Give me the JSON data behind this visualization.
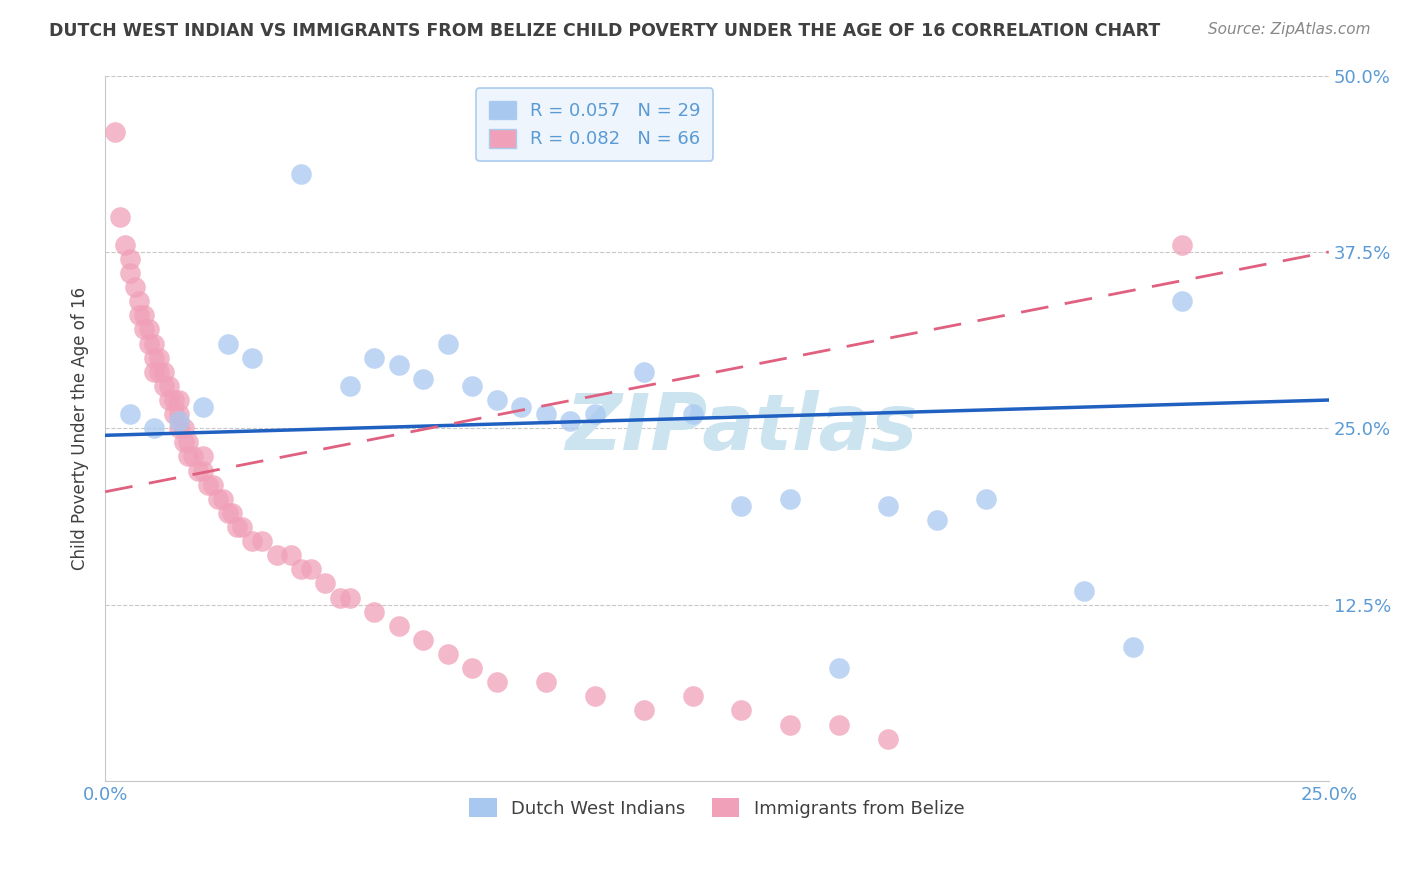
{
  "title": "DUTCH WEST INDIAN VS IMMIGRANTS FROM BELIZE CHILD POVERTY UNDER THE AGE OF 16 CORRELATION CHART",
  "source": "Source: ZipAtlas.com",
  "ylabel": "Child Poverty Under the Age of 16",
  "xlim": [
    0.0,
    0.25
  ],
  "ylim": [
    0.0,
    0.5
  ],
  "xticks": [
    0.0,
    0.025,
    0.05,
    0.075,
    0.1,
    0.125,
    0.15,
    0.175,
    0.2,
    0.225,
    0.25
  ],
  "yticks": [
    0.0,
    0.125,
    0.25,
    0.375,
    0.5
  ],
  "xtick_labels_show": [
    "0.0%",
    "25.0%"
  ],
  "ytick_labels": [
    "",
    "12.5%",
    "25.0%",
    "37.5%",
    "50.0%"
  ],
  "series1_name": "Dutch West Indians",
  "series1_color": "#a8c8f0",
  "series1_line_color": "#2060c0",
  "series1_R": 0.057,
  "series1_N": 29,
  "series1_x": [
    0.005,
    0.01,
    0.015,
    0.02,
    0.025,
    0.03,
    0.04,
    0.05,
    0.055,
    0.06,
    0.065,
    0.07,
    0.075,
    0.08,
    0.085,
    0.09,
    0.095,
    0.1,
    0.11,
    0.12,
    0.13,
    0.14,
    0.15,
    0.16,
    0.17,
    0.18,
    0.2,
    0.21,
    0.22
  ],
  "series1_y": [
    0.26,
    0.25,
    0.255,
    0.265,
    0.31,
    0.3,
    0.43,
    0.28,
    0.3,
    0.295,
    0.285,
    0.31,
    0.28,
    0.27,
    0.265,
    0.26,
    0.255,
    0.26,
    0.29,
    0.26,
    0.195,
    0.2,
    0.08,
    0.195,
    0.185,
    0.2,
    0.135,
    0.095,
    0.34
  ],
  "series2_name": "Immigrants from Belize",
  "series2_color": "#f0a0b8",
  "series2_line_color": "#e06080",
  "series2_R": 0.082,
  "series2_N": 66,
  "series2_x": [
    0.002,
    0.003,
    0.004,
    0.005,
    0.005,
    0.006,
    0.007,
    0.007,
    0.008,
    0.008,
    0.009,
    0.009,
    0.01,
    0.01,
    0.01,
    0.011,
    0.011,
    0.012,
    0.012,
    0.013,
    0.013,
    0.014,
    0.014,
    0.015,
    0.015,
    0.015,
    0.016,
    0.016,
    0.017,
    0.017,
    0.018,
    0.019,
    0.02,
    0.02,
    0.021,
    0.022,
    0.023,
    0.024,
    0.025,
    0.026,
    0.027,
    0.028,
    0.03,
    0.032,
    0.035,
    0.038,
    0.04,
    0.042,
    0.045,
    0.048,
    0.05,
    0.055,
    0.06,
    0.065,
    0.07,
    0.075,
    0.08,
    0.09,
    0.1,
    0.11,
    0.12,
    0.13,
    0.14,
    0.15,
    0.16,
    0.22
  ],
  "series2_y": [
    0.46,
    0.4,
    0.38,
    0.37,
    0.36,
    0.35,
    0.33,
    0.34,
    0.32,
    0.33,
    0.31,
    0.32,
    0.3,
    0.31,
    0.29,
    0.29,
    0.3,
    0.28,
    0.29,
    0.27,
    0.28,
    0.27,
    0.26,
    0.26,
    0.25,
    0.27,
    0.25,
    0.24,
    0.24,
    0.23,
    0.23,
    0.22,
    0.22,
    0.23,
    0.21,
    0.21,
    0.2,
    0.2,
    0.19,
    0.19,
    0.18,
    0.18,
    0.17,
    0.17,
    0.16,
    0.16,
    0.15,
    0.15,
    0.14,
    0.13,
    0.13,
    0.12,
    0.11,
    0.1,
    0.09,
    0.08,
    0.07,
    0.07,
    0.06,
    0.05,
    0.06,
    0.05,
    0.04,
    0.04,
    0.03,
    0.38
  ],
  "bg_color": "#ffffff",
  "grid_color": "#c8c8c8",
  "axis_color": "#5b9bd5",
  "title_color": "#404040",
  "source_color": "#888888",
  "watermark_text": "ZIPatlas",
  "watermark_color": "#cce4f0"
}
